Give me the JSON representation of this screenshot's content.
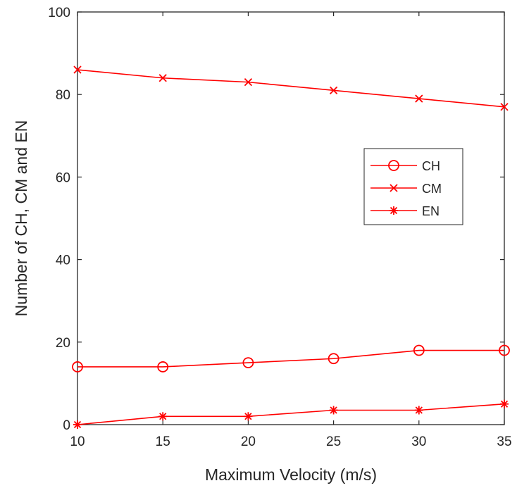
{
  "chart_data": {
    "type": "line",
    "xlabel": "Maximum Velocity (m/s)",
    "ylabel": "Number of CH, CM and EN",
    "xlim": [
      10,
      35
    ],
    "ylim": [
      0,
      100
    ],
    "xticks": [
      "10",
      "15",
      "20",
      "25",
      "30",
      "35"
    ],
    "yticks": [
      "0",
      "20",
      "40",
      "60",
      "80",
      "100"
    ],
    "grid": false,
    "legend_position": "right-middle",
    "x": [
      10,
      15,
      20,
      25,
      30,
      35
    ],
    "series": [
      {
        "name": "CH",
        "marker": "circle",
        "color": "#ff0000",
        "values": [
          14,
          14,
          15,
          16,
          18,
          18
        ]
      },
      {
        "name": "CM",
        "marker": "x",
        "color": "#ff0000",
        "values": [
          86,
          84,
          83,
          81,
          79,
          77
        ]
      },
      {
        "name": "EN",
        "marker": "star",
        "color": "#ff0000",
        "values": [
          0,
          2,
          2,
          3.5,
          3.5,
          5
        ]
      }
    ]
  }
}
